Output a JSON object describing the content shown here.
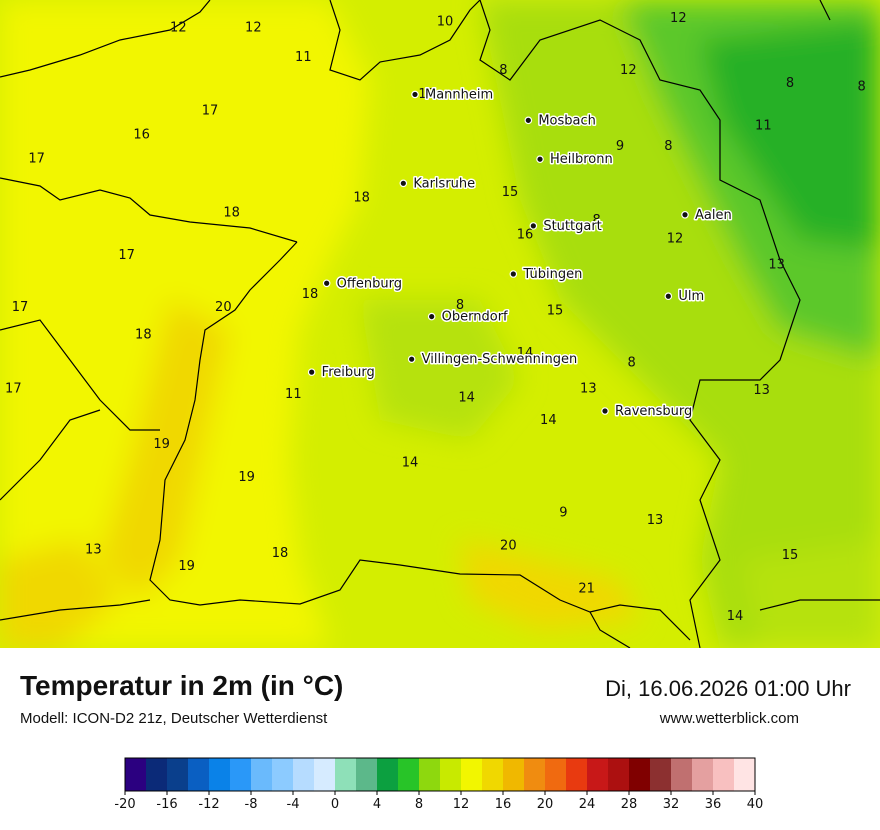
{
  "header": {
    "title": "Temperatur in 2m (in °C)",
    "model": "Modell: ICON-D2 21z, Deutscher Wetterdienst",
    "datetime": "Di, 16.06.2026 01:00 Uhr",
    "website": "www.wetterblick.com"
  },
  "cities": [
    {
      "name": "Mannheim",
      "lon": 8.47,
      "lat": 49.49
    },
    {
      "name": "Mosbach",
      "lon": 9.15,
      "lat": 49.35
    },
    {
      "name": "Heilbronn",
      "lon": 9.22,
      "lat": 49.14
    },
    {
      "name": "Karlsruhe",
      "lon": 8.4,
      "lat": 49.01
    },
    {
      "name": "Aalen",
      "lon": 10.09,
      "lat": 48.84
    },
    {
      "name": "Stuttgart",
      "lon": 9.18,
      "lat": 48.78
    },
    {
      "name": "Tübingen",
      "lon": 9.06,
      "lat": 48.52
    },
    {
      "name": "Offenburg",
      "lon": 7.94,
      "lat": 48.47
    },
    {
      "name": "Ulm",
      "lon": 9.99,
      "lat": 48.4
    },
    {
      "name": "Oberndorf",
      "lon": 8.57,
      "lat": 48.29
    },
    {
      "name": "Villingen-Schwenningen",
      "lon": 8.45,
      "lat": 48.06
    },
    {
      "name": "Freiburg",
      "lon": 7.85,
      "lat": 47.99
    },
    {
      "name": "Ravensburg",
      "lon": 9.61,
      "lat": 47.78
    }
  ],
  "temperature_labels": [
    {
      "value": "12",
      "lon": 7.05,
      "lat": 49.85
    },
    {
      "value": "12",
      "lon": 7.5,
      "lat": 49.85
    },
    {
      "value": "10",
      "lon": 8.65,
      "lat": 49.88
    },
    {
      "value": "12",
      "lon": 10.05,
      "lat": 49.9
    },
    {
      "value": "11",
      "lon": 7.8,
      "lat": 49.69
    },
    {
      "value": "8",
      "lon": 9.0,
      "lat": 49.62
    },
    {
      "value": "12",
      "lon": 9.75,
      "lat": 49.62
    },
    {
      "value": "8",
      "lon": 10.72,
      "lat": 49.55
    },
    {
      "value": "8",
      "lon": 11.15,
      "lat": 49.53
    },
    {
      "value": "10",
      "lon": 8.54,
      "lat": 49.49
    },
    {
      "value": "17",
      "lon": 7.24,
      "lat": 49.4
    },
    {
      "value": "16",
      "lon": 6.83,
      "lat": 49.27
    },
    {
      "value": "11",
      "lon": 10.56,
      "lat": 49.32
    },
    {
      "value": "9",
      "lon": 9.7,
      "lat": 49.21
    },
    {
      "value": "8",
      "lon": 9.99,
      "lat": 49.21
    },
    {
      "value": "17",
      "lon": 6.2,
      "lat": 49.14
    },
    {
      "value": "15",
      "lon": 9.04,
      "lat": 48.96
    },
    {
      "value": "18",
      "lon": 8.15,
      "lat": 48.93
    },
    {
      "value": "18",
      "lon": 7.37,
      "lat": 48.85
    },
    {
      "value": "8",
      "lon": 9.56,
      "lat": 48.81
    },
    {
      "value": "16",
      "lon": 9.13,
      "lat": 48.73
    },
    {
      "value": "12",
      "lon": 10.03,
      "lat": 48.71
    },
    {
      "value": "17",
      "lon": 6.74,
      "lat": 48.62
    },
    {
      "value": "13",
      "lon": 10.64,
      "lat": 48.57
    },
    {
      "value": "18",
      "lon": 7.84,
      "lat": 48.41
    },
    {
      "value": "8",
      "lon": 8.74,
      "lat": 48.35
    },
    {
      "value": "20",
      "lon": 7.32,
      "lat": 48.34
    },
    {
      "value": "17",
      "lon": 6.1,
      "lat": 48.34
    },
    {
      "value": "15",
      "lon": 9.31,
      "lat": 48.32
    },
    {
      "value": "18",
      "lon": 6.84,
      "lat": 48.19
    },
    {
      "value": "14",
      "lon": 9.13,
      "lat": 48.09
    },
    {
      "value": "8",
      "lon": 9.77,
      "lat": 48.04
    },
    {
      "value": "17",
      "lon": 6.06,
      "lat": 47.9
    },
    {
      "value": "11",
      "lon": 7.74,
      "lat": 47.87
    },
    {
      "value": "13",
      "lon": 9.51,
      "lat": 47.9
    },
    {
      "value": "14",
      "lon": 8.78,
      "lat": 47.85
    },
    {
      "value": "13",
      "lon": 10.55,
      "lat": 47.89
    },
    {
      "value": "14",
      "lon": 9.27,
      "lat": 47.73
    },
    {
      "value": "19",
      "lon": 6.95,
      "lat": 47.6
    },
    {
      "value": "14",
      "lon": 8.44,
      "lat": 47.5
    },
    {
      "value": "19",
      "lon": 7.46,
      "lat": 47.42
    },
    {
      "value": "9",
      "lon": 9.36,
      "lat": 47.23
    },
    {
      "value": "13",
      "lon": 9.91,
      "lat": 47.19
    },
    {
      "value": "13",
      "lon": 6.54,
      "lat": 47.03
    },
    {
      "value": "20",
      "lon": 9.03,
      "lat": 47.05
    },
    {
      "value": "18",
      "lon": 7.66,
      "lat": 47.01
    },
    {
      "value": "19",
      "lon": 7.1,
      "lat": 46.94
    },
    {
      "value": "15",
      "lon": 10.72,
      "lat": 47.0
    },
    {
      "value": "21",
      "lon": 9.5,
      "lat": 46.82
    },
    {
      "value": "14",
      "lon": 10.39,
      "lat": 46.67
    }
  ],
  "legend": {
    "colors": [
      "#2b0080",
      "#0b2a78",
      "#0a3f8c",
      "#0a5fc2",
      "#0a82e8",
      "#2a98f8",
      "#6abafc",
      "#8ccbff",
      "#b6dcff",
      "#d6ebff",
      "#8ee0b8",
      "#5cb88a",
      "#0ca040",
      "#28c428",
      "#8ed80e",
      "#c8ea00",
      "#f2f600",
      "#f0d800",
      "#f0b800",
      "#f08c10",
      "#f06a10",
      "#e83a10",
      "#c81818",
      "#ac1010",
      "#800000",
      "#8c3030",
      "#c07070",
      "#e4a0a0",
      "#f8c0c0",
      "#ffe4e4"
    ],
    "ticks": [
      "-20",
      "-16",
      "-12",
      "-8",
      "-4",
      "0",
      "4",
      "8",
      "12",
      "16",
      "20",
      "24",
      "28",
      "32",
      "36",
      "40"
    ]
  }
}
